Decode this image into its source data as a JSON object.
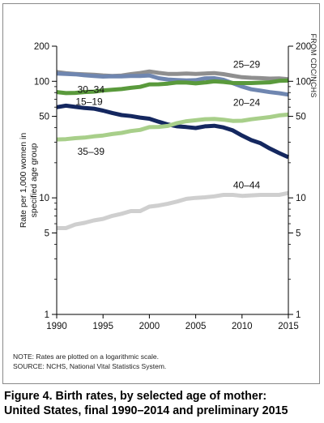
{
  "credit": "FROM CDC/NCHS",
  "chart_data": {
    "type": "line",
    "title": "",
    "xlabel": "",
    "ylabel": "Rate per 1,000 women in specified age group",
    "y_scale": "log",
    "xlim": [
      1990,
      2015
    ],
    "ylim": [
      1,
      200
    ],
    "x_ticks": [
      "1990",
      "1995",
      "2000",
      "2005",
      "2010",
      "2015"
    ],
    "y_ticks_left": [
      "1",
      "5",
      "10",
      "50",
      "100",
      "200"
    ],
    "y_ticks_right": [
      "1",
      "5",
      "10",
      "50",
      "100",
      "200"
    ],
    "grid": false,
    "x": [
      1990,
      1991,
      1992,
      1993,
      1994,
      1995,
      1996,
      1997,
      1998,
      1999,
      2000,
      2001,
      2002,
      2003,
      2004,
      2005,
      2006,
      2007,
      2008,
      2009,
      2010,
      2011,
      2012,
      2013,
      2014,
      2015
    ],
    "series": [
      {
        "name": "25–29",
        "color": "#8f8f8f",
        "values": [
          120.2,
          117.2,
          115.7,
          114.6,
          113.9,
          112.2,
          111.2,
          112.1,
          115.1,
          117.8,
          121.4,
          118.1,
          115.6,
          115.6,
          116.5,
          115.5,
          116.7,
          117.5,
          115.1,
          111.5,
          108.3,
          107.2,
          106.5,
          105.5,
          105.8,
          104.3
        ]
      },
      {
        "name": "20–24",
        "color": "#6f86b0",
        "values": [
          116.5,
          115.7,
          114.7,
          112.6,
          111.1,
          109.8,
          110.4,
          110.1,
          111.2,
          111.0,
          112.3,
          106.2,
          103.6,
          102.6,
          101.7,
          102.2,
          105.9,
          106.3,
          103.0,
          96.2,
          90.0,
          85.3,
          83.1,
          80.7,
          79.0,
          76.8
        ]
      },
      {
        "name": "30–34",
        "color": "#5a9a3c",
        "values": [
          80.8,
          79.2,
          79.6,
          80.8,
          81.5,
          83.5,
          84.6,
          85.7,
          87.8,
          89.6,
          94.1,
          94.3,
          95.5,
          97.7,
          97.5,
          95.9,
          97.7,
          99.9,
          98.8,
          96.7,
          96.6,
          96.5,
          97.3,
          98.0,
          100.8,
          101.5
        ]
      },
      {
        "name": "15–19",
        "color": "#14275f",
        "values": [
          59.9,
          61.8,
          60.3,
          59.0,
          58.2,
          56.0,
          53.5,
          51.3,
          50.3,
          48.8,
          47.7,
          45.0,
          42.6,
          41.1,
          40.5,
          39.7,
          41.1,
          41.5,
          40.2,
          37.9,
          34.2,
          31.3,
          29.4,
          26.5,
          24.2,
          22.3
        ]
      },
      {
        "name": "35–39",
        "color": "#a8cf8a",
        "values": [
          31.7,
          31.9,
          32.5,
          32.9,
          33.7,
          34.3,
          35.3,
          36.1,
          37.4,
          38.3,
          40.4,
          40.6,
          41.4,
          43.8,
          45.4,
          46.3,
          47.3,
          47.5,
          46.8,
          45.7,
          45.9,
          47.2,
          48.3,
          49.3,
          51.0,
          51.8
        ]
      },
      {
        "name": "40–44",
        "color": "#cfcfcf",
        "values": [
          5.5,
          5.5,
          5.9,
          6.1,
          6.4,
          6.6,
          7.0,
          7.3,
          7.7,
          7.7,
          8.4,
          8.6,
          8.9,
          9.3,
          9.8,
          10.0,
          10.1,
          10.3,
          10.6,
          10.6,
          10.4,
          10.5,
          10.6,
          10.6,
          10.6,
          11.0
        ]
      }
    ]
  },
  "notes": {
    "note": "NOTE: Rates are plotted on a logarithmic scale.",
    "source": "SOURCE: NCHS, National Vital Statistics System."
  },
  "caption": {
    "line1": "Figure 4. Birth rates, by selected age of mother:",
    "line2": "United States, final 1990–2014 and preliminary 2015"
  }
}
